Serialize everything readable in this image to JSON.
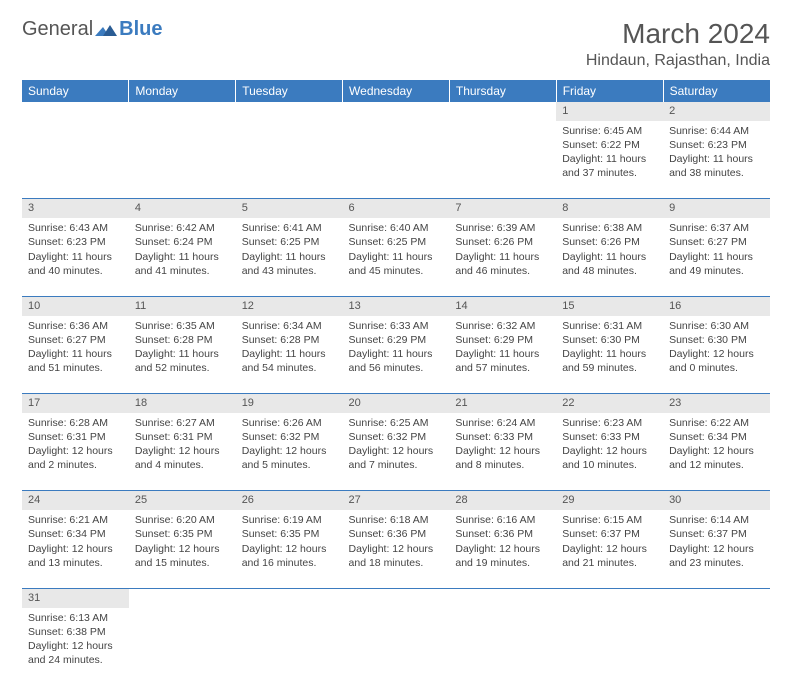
{
  "logo": {
    "text1": "General",
    "text2": "Blue"
  },
  "title": "March 2024",
  "location": "Hindaun, Rajasthan, India",
  "header_bg": "#3b7bbf",
  "daynum_bg": "#e8e8e8",
  "days": [
    "Sunday",
    "Monday",
    "Tuesday",
    "Wednesday",
    "Thursday",
    "Friday",
    "Saturday"
  ],
  "weeks": [
    [
      null,
      null,
      null,
      null,
      null,
      {
        "n": "1",
        "sr": "6:45 AM",
        "ss": "6:22 PM",
        "dl": "11 hours and 37 minutes."
      },
      {
        "n": "2",
        "sr": "6:44 AM",
        "ss": "6:23 PM",
        "dl": "11 hours and 38 minutes."
      }
    ],
    [
      {
        "n": "3",
        "sr": "6:43 AM",
        "ss": "6:23 PM",
        "dl": "11 hours and 40 minutes."
      },
      {
        "n": "4",
        "sr": "6:42 AM",
        "ss": "6:24 PM",
        "dl": "11 hours and 41 minutes."
      },
      {
        "n": "5",
        "sr": "6:41 AM",
        "ss": "6:25 PM",
        "dl": "11 hours and 43 minutes."
      },
      {
        "n": "6",
        "sr": "6:40 AM",
        "ss": "6:25 PM",
        "dl": "11 hours and 45 minutes."
      },
      {
        "n": "7",
        "sr": "6:39 AM",
        "ss": "6:26 PM",
        "dl": "11 hours and 46 minutes."
      },
      {
        "n": "8",
        "sr": "6:38 AM",
        "ss": "6:26 PM",
        "dl": "11 hours and 48 minutes."
      },
      {
        "n": "9",
        "sr": "6:37 AM",
        "ss": "6:27 PM",
        "dl": "11 hours and 49 minutes."
      }
    ],
    [
      {
        "n": "10",
        "sr": "6:36 AM",
        "ss": "6:27 PM",
        "dl": "11 hours and 51 minutes."
      },
      {
        "n": "11",
        "sr": "6:35 AM",
        "ss": "6:28 PM",
        "dl": "11 hours and 52 minutes."
      },
      {
        "n": "12",
        "sr": "6:34 AM",
        "ss": "6:28 PM",
        "dl": "11 hours and 54 minutes."
      },
      {
        "n": "13",
        "sr": "6:33 AM",
        "ss": "6:29 PM",
        "dl": "11 hours and 56 minutes."
      },
      {
        "n": "14",
        "sr": "6:32 AM",
        "ss": "6:29 PM",
        "dl": "11 hours and 57 minutes."
      },
      {
        "n": "15",
        "sr": "6:31 AM",
        "ss": "6:30 PM",
        "dl": "11 hours and 59 minutes."
      },
      {
        "n": "16",
        "sr": "6:30 AM",
        "ss": "6:30 PM",
        "dl": "12 hours and 0 minutes."
      }
    ],
    [
      {
        "n": "17",
        "sr": "6:28 AM",
        "ss": "6:31 PM",
        "dl": "12 hours and 2 minutes."
      },
      {
        "n": "18",
        "sr": "6:27 AM",
        "ss": "6:31 PM",
        "dl": "12 hours and 4 minutes."
      },
      {
        "n": "19",
        "sr": "6:26 AM",
        "ss": "6:32 PM",
        "dl": "12 hours and 5 minutes."
      },
      {
        "n": "20",
        "sr": "6:25 AM",
        "ss": "6:32 PM",
        "dl": "12 hours and 7 minutes."
      },
      {
        "n": "21",
        "sr": "6:24 AM",
        "ss": "6:33 PM",
        "dl": "12 hours and 8 minutes."
      },
      {
        "n": "22",
        "sr": "6:23 AM",
        "ss": "6:33 PM",
        "dl": "12 hours and 10 minutes."
      },
      {
        "n": "23",
        "sr": "6:22 AM",
        "ss": "6:34 PM",
        "dl": "12 hours and 12 minutes."
      }
    ],
    [
      {
        "n": "24",
        "sr": "6:21 AM",
        "ss": "6:34 PM",
        "dl": "12 hours and 13 minutes."
      },
      {
        "n": "25",
        "sr": "6:20 AM",
        "ss": "6:35 PM",
        "dl": "12 hours and 15 minutes."
      },
      {
        "n": "26",
        "sr": "6:19 AM",
        "ss": "6:35 PM",
        "dl": "12 hours and 16 minutes."
      },
      {
        "n": "27",
        "sr": "6:18 AM",
        "ss": "6:36 PM",
        "dl": "12 hours and 18 minutes."
      },
      {
        "n": "28",
        "sr": "6:16 AM",
        "ss": "6:36 PM",
        "dl": "12 hours and 19 minutes."
      },
      {
        "n": "29",
        "sr": "6:15 AM",
        "ss": "6:37 PM",
        "dl": "12 hours and 21 minutes."
      },
      {
        "n": "30",
        "sr": "6:14 AM",
        "ss": "6:37 PM",
        "dl": "12 hours and 23 minutes."
      }
    ],
    [
      {
        "n": "31",
        "sr": "6:13 AM",
        "ss": "6:38 PM",
        "dl": "12 hours and 24 minutes."
      },
      null,
      null,
      null,
      null,
      null,
      null
    ]
  ]
}
